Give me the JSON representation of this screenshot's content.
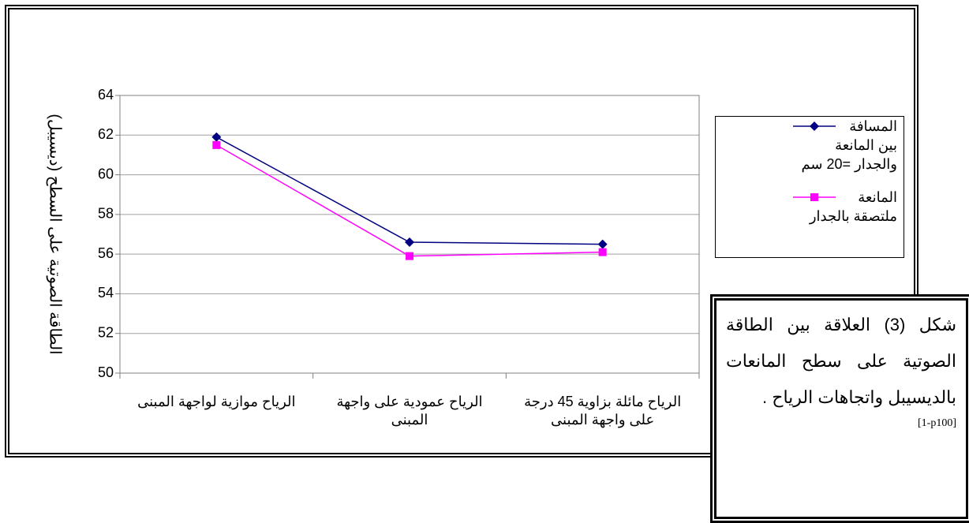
{
  "chart_data": {
    "type": "line",
    "y_label": "الطاقة الصوتية على السطح (ديسيبل)",
    "categories": [
      "الرياح موازية لواجهة المبنى",
      "الرياح عمودية على واجهة المبنى",
      "الرياح مائلة بزاوية 45 درجة على واجهة المبنى"
    ],
    "series": [
      {
        "name": "المسافة بين المانعة والجدار =20 سم",
        "color": "#000080",
        "marker": "diamond",
        "values": [
          61.9,
          56.6,
          56.5
        ]
      },
      {
        "name": "المانعة ملتصقة بالجدار",
        "color": "#ff00ff",
        "marker": "square",
        "values": [
          61.5,
          55.9,
          56.1
        ]
      }
    ],
    "ylim": [
      50,
      64
    ],
    "yticks": [
      50,
      52,
      54,
      56,
      58,
      60,
      62,
      64
    ],
    "grid": true,
    "caption": "شكل (3) العلاقة بين الطاقة الصوتية على سطح المانعات بالديسيبل واتجاهات الرياح .",
    "reference": "[1-p100]"
  }
}
